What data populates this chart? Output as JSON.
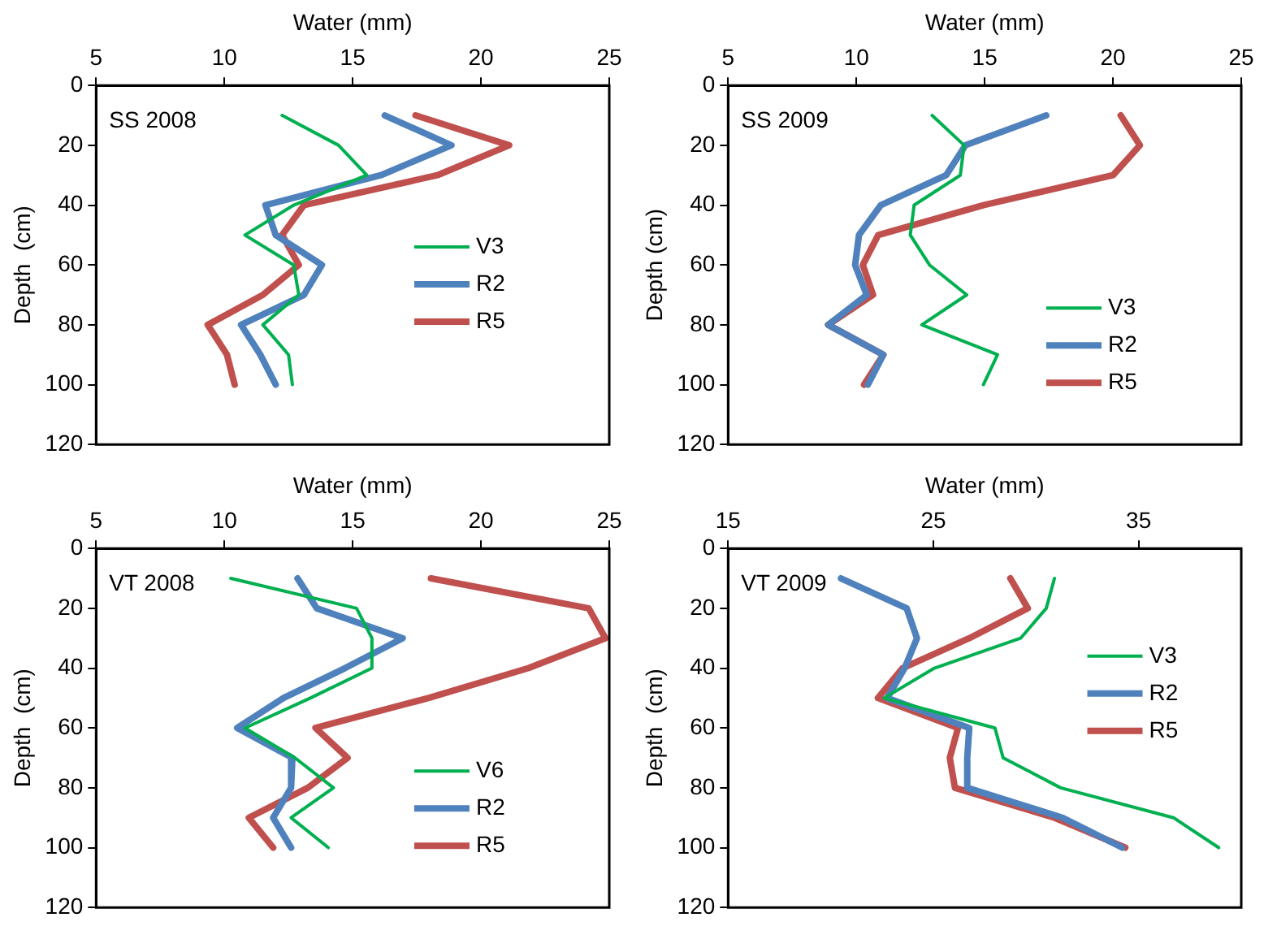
{
  "chart_data": [
    {
      "type": "line",
      "title": "SS 2008",
      "xlabel": "Water (mm)",
      "ylabel": "Depth  (cm)",
      "xlim": [
        5,
        25
      ],
      "xticks": [
        5,
        10,
        15,
        20,
        25
      ],
      "ylim": [
        120,
        0
      ],
      "yticks": [
        0,
        20,
        40,
        60,
        80,
        100,
        120
      ],
      "grid": false,
      "legend": "right",
      "series": [
        {
          "name": "V3",
          "color": "#00b050",
          "x": [
            12.25,
            14.45,
            15.55,
            12.7,
            10.8,
            12.7,
            12.9,
            11.5,
            12.5,
            12.65
          ],
          "values": [
            10,
            20,
            30,
            40,
            50,
            60,
            70,
            80,
            90,
            100
          ]
        },
        {
          "name": "R2",
          "color": "#4f81bd",
          "x": [
            16.25,
            18.85,
            16.1,
            11.6,
            12.0,
            13.8,
            13.1,
            10.65,
            11.4,
            12.0
          ],
          "values": [
            10,
            20,
            30,
            40,
            50,
            60,
            70,
            80,
            90,
            100
          ]
        },
        {
          "name": "R5",
          "color": "#c0504d",
          "x": [
            17.45,
            21.1,
            18.3,
            13.1,
            12.25,
            12.9,
            11.5,
            9.35,
            10.1,
            10.4
          ],
          "values": [
            10,
            20,
            30,
            40,
            50,
            60,
            70,
            80,
            90,
            100
          ]
        }
      ]
    },
    {
      "type": "line",
      "title": "SS 2009",
      "xlabel": "Water (mm)",
      "ylabel": "Depth (cm)",
      "xlim": [
        5,
        25
      ],
      "xticks": [
        5,
        10,
        15,
        20,
        25
      ],
      "ylim": [
        120,
        0
      ],
      "yticks": [
        0,
        20,
        40,
        60,
        80,
        100,
        120
      ],
      "grid": false,
      "legend": "bottom right",
      "series": [
        {
          "name": "V3",
          "color": "#00b050",
          "x": [
            12.95,
            14.2,
            14.05,
            12.25,
            12.1,
            12.85,
            14.3,
            12.55,
            15.5,
            14.95
          ],
          "values": [
            10,
            20,
            30,
            40,
            50,
            60,
            70,
            80,
            90,
            100
          ]
        },
        {
          "name": "R2",
          "color": "#4f81bd",
          "x": [
            17.4,
            14.25,
            13.5,
            10.95,
            10.1,
            9.95,
            10.4,
            8.9,
            11.05,
            10.45
          ],
          "values": [
            10,
            20,
            30,
            40,
            50,
            60,
            70,
            80,
            90,
            100
          ]
        },
        {
          "name": "R5",
          "color": "#c0504d",
          "x": [
            20.3,
            21.05,
            20.0,
            14.95,
            10.85,
            10.25,
            10.65,
            8.9,
            11.05,
            10.3
          ],
          "values": [
            10,
            20,
            30,
            40,
            50,
            60,
            70,
            80,
            90,
            100
          ]
        }
      ]
    },
    {
      "type": "line",
      "title": "VT 2008",
      "xlabel": "Water (mm)",
      "ylabel": "Depth  (cm)",
      "xlim": [
        5,
        25
      ],
      "xticks": [
        5,
        10,
        15,
        20,
        25
      ],
      "ylim": [
        120,
        0
      ],
      "yticks": [
        0,
        20,
        40,
        60,
        80,
        100,
        120
      ],
      "grid": false,
      "legend": "bottom right",
      "series": [
        {
          "name": "V6",
          "color": "#00b050",
          "x": [
            10.25,
            15.15,
            15.75,
            15.75,
            13.35,
            10.8,
            12.75,
            14.25,
            12.6,
            14.05
          ],
          "values": [
            10,
            20,
            30,
            40,
            50,
            60,
            70,
            80,
            90,
            100
          ]
        },
        {
          "name": "R2",
          "color": "#4f81bd",
          "x": [
            12.85,
            13.6,
            16.95,
            14.7,
            12.3,
            10.5,
            12.65,
            12.6,
            11.9,
            12.6
          ],
          "values": [
            10,
            20,
            30,
            40,
            50,
            60,
            70,
            80,
            90,
            100
          ]
        },
        {
          "name": "R5",
          "color": "#c0504d",
          "x": [
            18.05,
            24.2,
            24.85,
            21.85,
            17.95,
            13.55,
            14.8,
            13.25,
            10.95,
            11.9
          ],
          "values": [
            10,
            20,
            30,
            40,
            50,
            60,
            70,
            80,
            90,
            100
          ]
        }
      ]
    },
    {
      "type": "line",
      "title": "VT 2009",
      "xlabel": "Water (mm)",
      "ylabel": "Depth  (cm)",
      "xlim": [
        15,
        40
      ],
      "xticks": [
        15,
        25,
        35
      ],
      "ylim": [
        120,
        0
      ],
      "yticks": [
        0,
        20,
        40,
        60,
        80,
        100,
        120
      ],
      "grid": false,
      "legend": "top right",
      "series": [
        {
          "name": "V3",
          "color": "#00b050",
          "x": [
            30.9,
            30.5,
            29.25,
            25.05,
            22.6,
            28.0,
            28.4,
            31.2,
            36.7,
            38.9
          ],
          "values": [
            10,
            20,
            30,
            40,
            50,
            60,
            70,
            80,
            90,
            100
          ]
        },
        {
          "name": "R2",
          "color": "#4f81bd",
          "x": [
            20.5,
            23.7,
            24.2,
            23.6,
            22.75,
            26.75,
            26.65,
            26.65,
            31.3,
            34.2
          ],
          "values": [
            10,
            20,
            30,
            40,
            50,
            60,
            70,
            80,
            90,
            100
          ]
        },
        {
          "name": "R5",
          "color": "#c0504d",
          "x": [
            28.75,
            29.6,
            26.75,
            23.5,
            22.3,
            26.2,
            25.8,
            26.05,
            30.9,
            34.35
          ],
          "values": [
            10,
            20,
            30,
            40,
            50,
            60,
            70,
            80,
            90,
            100
          ]
        }
      ]
    }
  ]
}
